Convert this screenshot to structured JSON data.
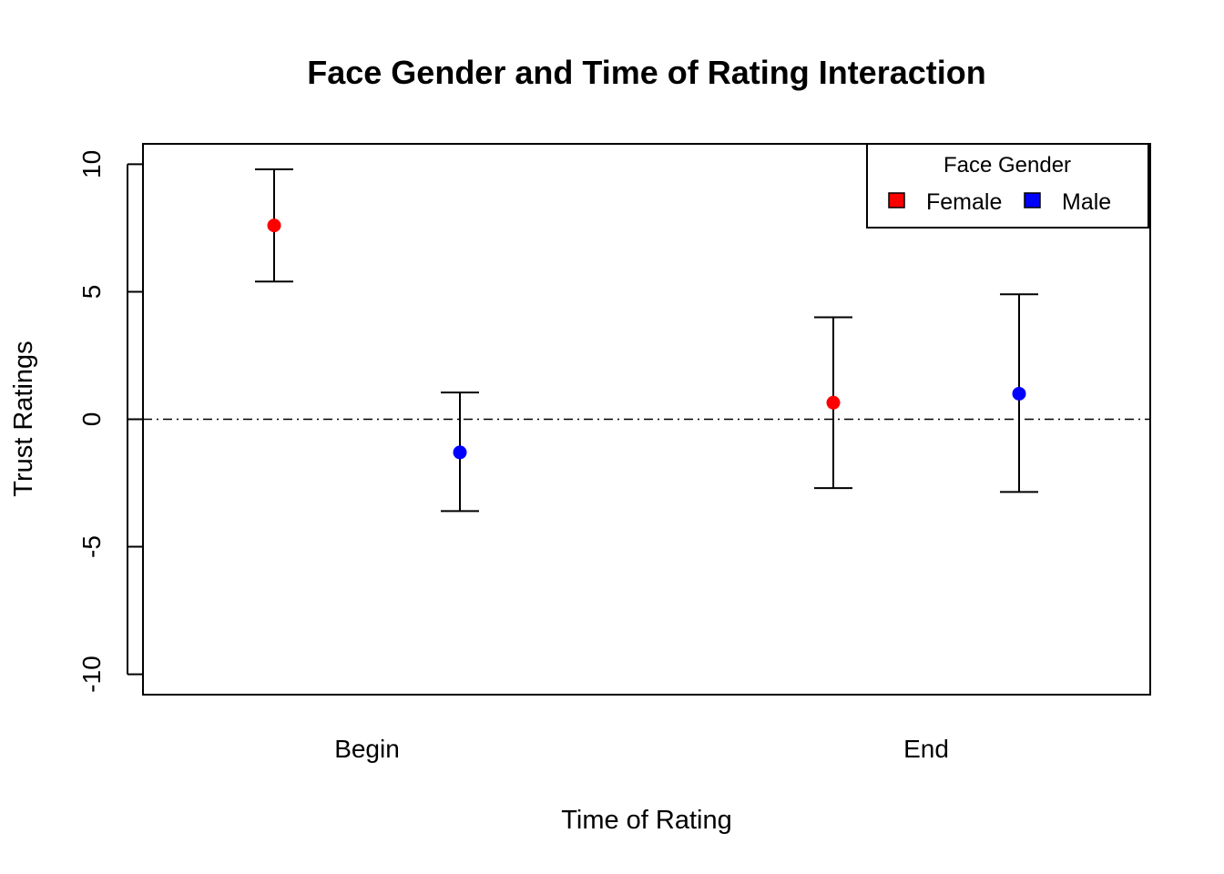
{
  "chart_data": {
    "type": "scatter",
    "title": "Face Gender and Time of Rating Interaction",
    "xlabel": "Time of Rating",
    "ylabel": "Trust Ratings",
    "categories": [
      "Begin",
      "End"
    ],
    "ylim": [
      -10.8,
      10.8
    ],
    "yticks": [
      "-10",
      "-5",
      "0",
      "5",
      "10"
    ],
    "reference_line": 0,
    "legend": {
      "title": "Face Gender",
      "placement": "top-right"
    },
    "series": [
      {
        "name": "Female",
        "color": "#ff0000",
        "points": [
          {
            "category": "Begin",
            "mean": 7.6,
            "lower": 5.4,
            "upper": 9.8
          },
          {
            "category": "End",
            "mean": 0.65,
            "lower": -2.7,
            "upper": 4.0
          }
        ]
      },
      {
        "name": "Male",
        "color": "#0000ff",
        "points": [
          {
            "category": "Begin",
            "mean": -1.3,
            "lower": -3.6,
            "upper": 1.05
          },
          {
            "category": "End",
            "mean": 1.0,
            "lower": -2.85,
            "upper": 4.9
          }
        ]
      }
    ]
  }
}
